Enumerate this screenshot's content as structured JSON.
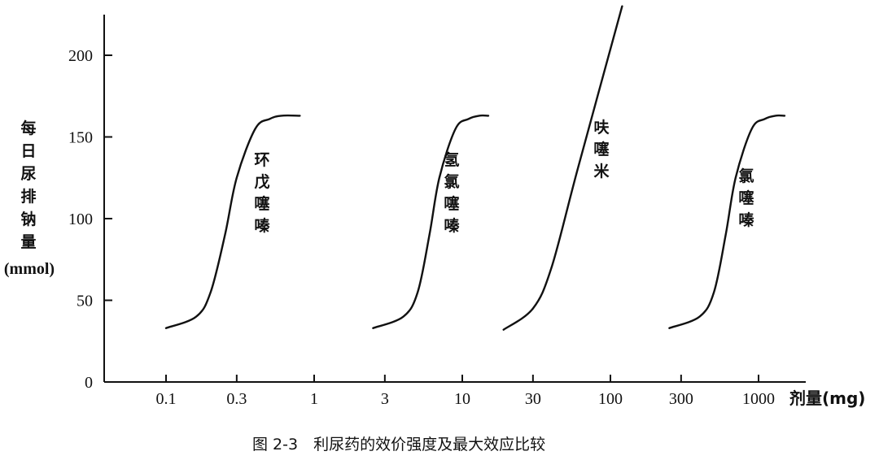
{
  "chart_data": {
    "type": "line",
    "caption": "图 2-3　利尿药的效价强度及最大效应比较",
    "ylabel_chars": [
      "每",
      "日",
      "尿",
      "排",
      "钠",
      "量"
    ],
    "ylabel_unit": "(mmol)",
    "xlabel": "剂量(mg)",
    "x_scale": "log",
    "x_ticks": [
      0.1,
      0.3,
      1,
      3,
      10,
      30,
      100,
      300,
      1000
    ],
    "x_tick_labels": [
      "0.1",
      "0.3",
      "1",
      "3",
      "10",
      "30",
      "100",
      "300",
      "1000"
    ],
    "y_ticks": [
      0,
      50,
      100,
      150,
      200
    ],
    "y_tick_labels": [
      "0",
      "50",
      "100",
      "150",
      "200"
    ],
    "ylim": [
      0,
      225
    ],
    "grid": false,
    "series": [
      {
        "name": "环戊噻嗪",
        "label_chars": [
          "环",
          "戊",
          "噻",
          "嗪"
        ],
        "x": [
          0.1,
          0.16,
          0.2,
          0.25,
          0.3,
          0.4,
          0.5,
          0.6,
          0.8
        ],
        "y": [
          33,
          40,
          55,
          90,
          125,
          155,
          161,
          163,
          163
        ]
      },
      {
        "name": "氢氯噻嗪",
        "label_chars": [
          "氢",
          "氯",
          "噻",
          "嗪"
        ],
        "x": [
          2.5,
          4,
          5,
          6,
          7,
          9,
          11,
          13,
          15
        ],
        "y": [
          33,
          40,
          55,
          90,
          125,
          155,
          161,
          163,
          163
        ]
      },
      {
        "name": "呋噻米",
        "label_chars": [
          "呋",
          "噻",
          "米"
        ],
        "x": [
          19,
          30,
          40,
          60,
          120
        ],
        "y": [
          32,
          45,
          70,
          130,
          230
        ]
      },
      {
        "name": "氯噻嗪",
        "label_chars": [
          "氯",
          "噻",
          "嗪"
        ],
        "x": [
          250,
          400,
          500,
          600,
          700,
          900,
          1100,
          1300,
          1500
        ],
        "y": [
          33,
          40,
          55,
          90,
          125,
          155,
          161,
          163,
          163
        ]
      }
    ]
  }
}
